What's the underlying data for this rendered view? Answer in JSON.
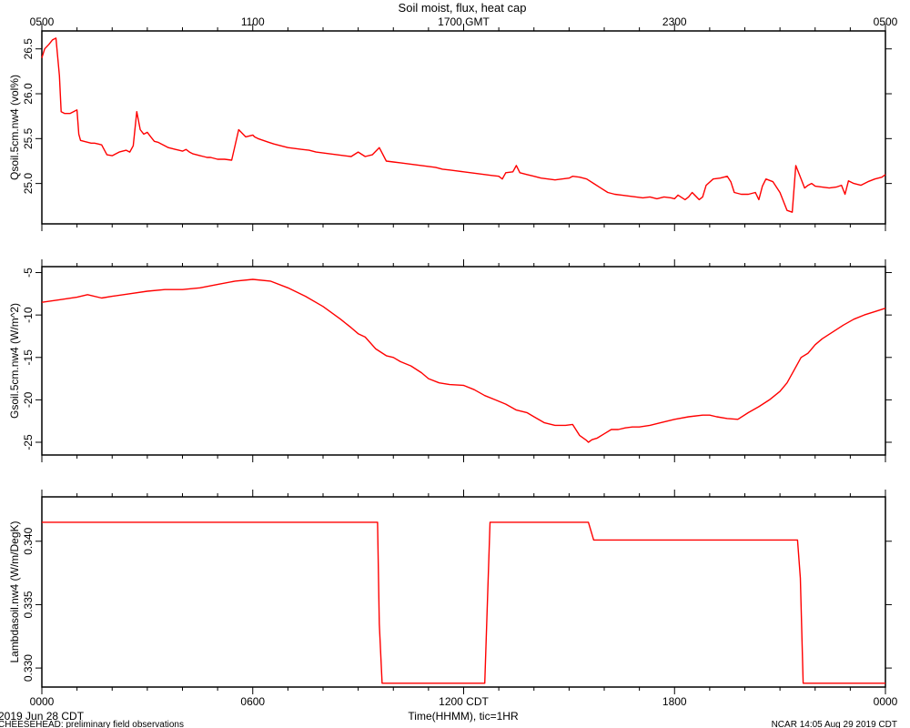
{
  "title": "Soil moist, flux, heat cap",
  "top_axis": {
    "tick_labels": [
      "0500",
      "1100",
      "1700 GMT",
      "2300",
      "0500"
    ],
    "tick_positions_hours": [
      0,
      6,
      12,
      18,
      24
    ]
  },
  "bottom_axis": {
    "tick_labels": [
      "0000",
      "0600",
      "1200 CDT",
      "1800",
      "0000"
    ],
    "tick_positions_hours": [
      0,
      6,
      12,
      18,
      24
    ],
    "xlabel": "Time(HHMM), tic=1HR",
    "date_label": "2019 Jun 28 CDT"
  },
  "footer": {
    "left": "CHEESEHEAD: preliminary field observations",
    "right": "NCAR 14:05 Aug 29 2019 CDT"
  },
  "colors": {
    "series": "#ff0000",
    "axis": "#000000"
  },
  "chart_data": [
    {
      "type": "line",
      "ylabel": "Qsoil.5cm.nw4 (vol%)",
      "xlim": [
        0,
        24
      ],
      "ylim": [
        24.55,
        26.7
      ],
      "ytick_values": [
        25.0,
        25.5,
        26.0,
        26.5
      ],
      "ytick_labels": [
        "25.0",
        "25.5",
        "26.0",
        "26.5"
      ],
      "grid": false,
      "series": [
        {
          "x": [
            0,
            0.08,
            0.2,
            0.3,
            0.4,
            0.5,
            0.55,
            0.65,
            0.8,
            0.9,
            1.0,
            1.05,
            1.1,
            1.2,
            1.3,
            1.4,
            1.5,
            1.6,
            1.7,
            1.85,
            2.0,
            2.1,
            2.2,
            2.4,
            2.5,
            2.6,
            2.7,
            2.8,
            2.9,
            3.0,
            3.1,
            3.2,
            3.3,
            3.4,
            3.5,
            3.6,
            3.7,
            3.8,
            3.9,
            4.0,
            4.1,
            4.2,
            4.3,
            4.4,
            4.5,
            4.6,
            4.7,
            4.8,
            4.9,
            5.0,
            5.2,
            5.4,
            5.6,
            5.8,
            6.0,
            6.05,
            6.15,
            6.3,
            6.45,
            6.6,
            6.8,
            7.0,
            7.2,
            7.4,
            7.6,
            7.8,
            8.0,
            8.2,
            8.4,
            8.6,
            8.8,
            9.0,
            9.2,
            9.4,
            9.6,
            9.8,
            10.0,
            10.2,
            10.4,
            10.6,
            10.8,
            11.0,
            11.2,
            11.4,
            11.6,
            11.8,
            12.0,
            12.2,
            12.4,
            12.6,
            12.8,
            13.0,
            13.1,
            13.2,
            13.4,
            13.5,
            13.6,
            13.8,
            14.0,
            14.2,
            14.4,
            14.6,
            14.8,
            15.0,
            15.1,
            15.3,
            15.5,
            15.7,
            15.9,
            16.1,
            16.3,
            16.5,
            16.7,
            16.9,
            17.1,
            17.3,
            17.5,
            17.7,
            17.9,
            18.0,
            18.1,
            18.3,
            18.4,
            18.5,
            18.7,
            18.8,
            18.9,
            19.1,
            19.3,
            19.5,
            19.6,
            19.7,
            19.9,
            20.1,
            20.3,
            20.4,
            20.5,
            20.6,
            20.8,
            21.0,
            21.2,
            21.35,
            21.45,
            21.55,
            21.7,
            21.8,
            21.9,
            22.0,
            22.2,
            22.4,
            22.6,
            22.75,
            22.85,
            22.95,
            23.1,
            23.3,
            23.5,
            23.7,
            23.9,
            24.0
          ],
          "y": [
            26.4,
            26.5,
            26.55,
            26.6,
            26.62,
            26.2,
            25.8,
            25.78,
            25.78,
            25.8,
            25.82,
            25.55,
            25.48,
            25.47,
            25.46,
            25.45,
            25.45,
            25.44,
            25.43,
            25.32,
            25.31,
            25.33,
            25.35,
            25.37,
            25.35,
            25.42,
            25.8,
            25.6,
            25.55,
            25.57,
            25.52,
            25.47,
            25.46,
            25.44,
            25.42,
            25.4,
            25.39,
            25.38,
            25.37,
            25.36,
            25.38,
            25.35,
            25.33,
            25.32,
            25.31,
            25.3,
            25.29,
            25.29,
            25.28,
            25.27,
            25.27,
            25.26,
            25.6,
            25.52,
            25.54,
            25.52,
            25.5,
            25.48,
            25.46,
            25.44,
            25.42,
            25.4,
            25.39,
            25.38,
            25.37,
            25.35,
            25.34,
            25.33,
            25.32,
            25.31,
            25.3,
            25.35,
            25.3,
            25.32,
            25.4,
            25.25,
            25.24,
            25.23,
            25.22,
            25.21,
            25.2,
            25.19,
            25.18,
            25.16,
            25.15,
            25.14,
            25.13,
            25.12,
            25.11,
            25.1,
            25.09,
            25.08,
            25.05,
            25.12,
            25.13,
            25.2,
            25.12,
            25.1,
            25.08,
            25.06,
            25.05,
            25.04,
            25.05,
            25.06,
            25.08,
            25.07,
            25.05,
            25.0,
            24.95,
            24.9,
            24.88,
            24.87,
            24.86,
            24.85,
            24.84,
            24.85,
            24.83,
            24.85,
            24.84,
            24.83,
            24.87,
            24.82,
            24.85,
            24.9,
            24.82,
            24.85,
            24.98,
            25.05,
            25.06,
            25.08,
            25.02,
            24.9,
            24.88,
            24.88,
            24.9,
            24.82,
            24.97,
            25.05,
            25.02,
            24.9,
            24.7,
            24.68,
            25.2,
            25.1,
            24.95,
            24.98,
            25.0,
            24.97,
            24.96,
            24.95,
            24.96,
            24.98,
            24.88,
            25.03,
            25.0,
            24.98,
            25.02,
            25.05,
            25.07,
            25.1
          ]
        }
      ]
    },
    {
      "type": "line",
      "ylabel": "Gsoil.5cm.nw4 (W/m^2)",
      "xlim": [
        0,
        24
      ],
      "ylim": [
        -26.5,
        -4.3
      ],
      "ytick_values": [
        -5,
        -10,
        -15,
        -20,
        -25
      ],
      "ytick_labels": [
        "-5",
        "-10",
        "-15",
        "-20",
        "-25"
      ],
      "grid": false,
      "series": [
        {
          "x": [
            0,
            0.5,
            1.0,
            1.3,
            1.7,
            2.0,
            2.5,
            3.0,
            3.5,
            4.0,
            4.5,
            5.0,
            5.5,
            6.0,
            6.5,
            7.0,
            7.5,
            8.0,
            8.5,
            8.8,
            9.0,
            9.2,
            9.5,
            9.8,
            10.0,
            10.2,
            10.5,
            10.8,
            11.0,
            11.3,
            11.6,
            12.0,
            12.3,
            12.6,
            12.9,
            13.2,
            13.5,
            13.8,
            14.0,
            14.3,
            14.6,
            14.9,
            15.1,
            15.3,
            15.5,
            15.55,
            15.65,
            15.8,
            16.0,
            16.2,
            16.4,
            16.6,
            16.8,
            17.0,
            17.3,
            17.6,
            18.0,
            18.4,
            18.8,
            19.0,
            19.2,
            19.5,
            19.8,
            20.1,
            20.4,
            20.7,
            21.0,
            21.2,
            21.4,
            21.6,
            21.8,
            22.0,
            22.2,
            22.5,
            22.8,
            23.1,
            23.4,
            23.7,
            24.0
          ],
          "y": [
            -8.5,
            -8.2,
            -7.9,
            -7.6,
            -8.0,
            -7.8,
            -7.5,
            -7.2,
            -7.0,
            -7.0,
            -6.8,
            -6.4,
            -6.0,
            -5.8,
            -6.0,
            -6.8,
            -7.8,
            -9.0,
            -10.5,
            -11.5,
            -12.2,
            -12.6,
            -14.0,
            -14.8,
            -15.0,
            -15.5,
            -16.0,
            -16.8,
            -17.5,
            -18.0,
            -18.2,
            -18.3,
            -18.8,
            -19.5,
            -20.0,
            -20.5,
            -21.2,
            -21.5,
            -22.0,
            -22.7,
            -23.0,
            -23.0,
            -22.9,
            -24.2,
            -24.8,
            -25.0,
            -24.7,
            -24.5,
            -24.0,
            -23.5,
            -23.5,
            -23.3,
            -23.2,
            -23.2,
            -23.0,
            -22.7,
            -22.3,
            -22.0,
            -21.8,
            -21.8,
            -22.0,
            -22.2,
            -22.3,
            -21.5,
            -20.8,
            -20.0,
            -19.0,
            -18.0,
            -16.5,
            -15.0,
            -14.5,
            -13.5,
            -12.8,
            -12.0,
            -11.2,
            -10.5,
            -10.0,
            -9.6,
            -9.2
          ]
        }
      ]
    },
    {
      "type": "line",
      "ylabel": "Lambdasoil.nw4 (W/m/DegK)",
      "xlim": [
        0,
        24
      ],
      "ylim": [
        0.3285,
        0.3435
      ],
      "ytick_values": [
        0.33,
        0.335,
        0.34
      ],
      "ytick_labels": [
        "0.330",
        "0.335",
        "0.340"
      ],
      "grid": false,
      "series": [
        {
          "x": [
            0,
            9.55,
            9.6,
            9.68,
            9.76,
            12.6,
            12.68,
            12.75,
            13.0,
            15.55,
            15.7,
            21.5,
            21.58,
            21.66,
            21.72,
            24.0
          ],
          "y": [
            0.3415,
            0.3415,
            0.3335,
            0.3288,
            0.3288,
            0.3288,
            0.3356,
            0.3415,
            0.3415,
            0.3415,
            0.3401,
            0.3401,
            0.3371,
            0.3288,
            0.3288,
            0.3288
          ]
        }
      ]
    }
  ]
}
